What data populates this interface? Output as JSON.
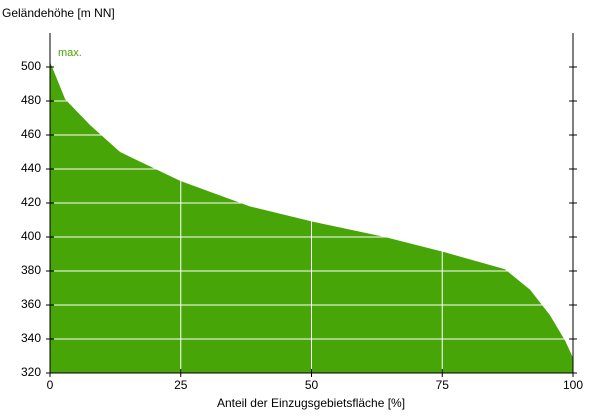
{
  "chart_data": {
    "type": "area",
    "y_label": "Geländehöhe [m NN]",
    "x_label": "Anteil der Einzugsgebietsfläche [%]",
    "annotation": "max.",
    "color": "#48a508",
    "grid": true,
    "xlim": [
      0,
      100
    ],
    "xticks": [
      0,
      25,
      50,
      75,
      100
    ],
    "ylim": [
      320,
      520
    ],
    "yticks": [
      320,
      340,
      360,
      380,
      400,
      420,
      440,
      460,
      480,
      500
    ],
    "x": [
      0,
      2.9,
      7.6,
      13.4,
      24.9,
      38.2,
      50.3,
      64,
      75.5,
      87,
      91.8,
      95.6,
      98.5,
      100
    ],
    "values": [
      503,
      481,
      466,
      450,
      433,
      418,
      409,
      400,
      391,
      381,
      369,
      354,
      339,
      329
    ]
  }
}
